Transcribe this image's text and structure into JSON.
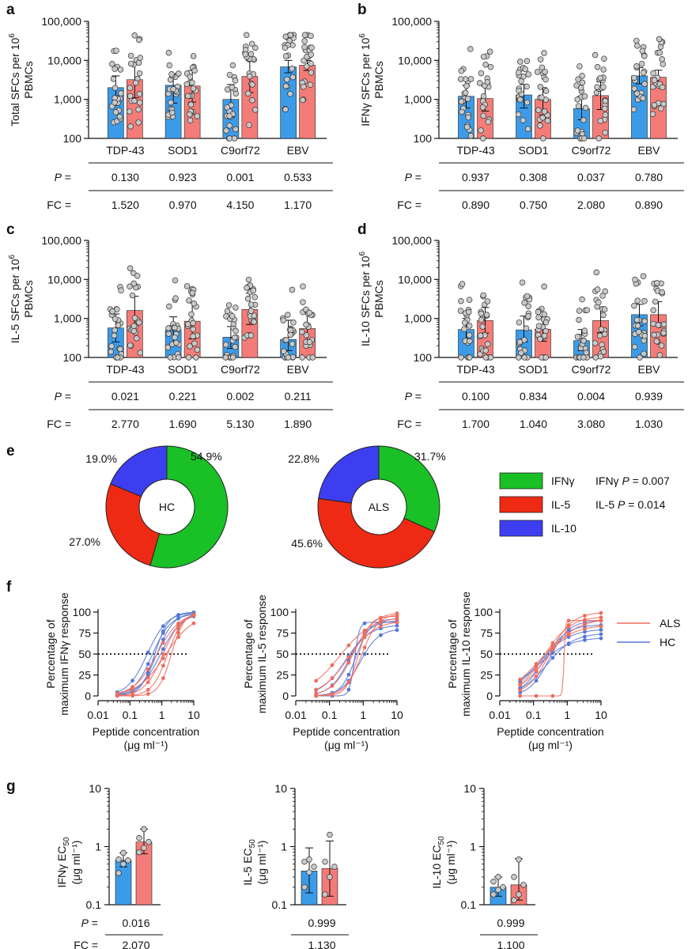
{
  "colors": {
    "hc": "#3b9be8",
    "als": "#f47c78",
    "hc_line": "#5578d8",
    "als_line": "#ee6d5f",
    "ifng": "#19c026",
    "il5": "#ef2a14",
    "il10": "#3d3ef0"
  },
  "panels": {
    "a": {
      "label": "a",
      "ylabel_line1": "Total SFCs per 10",
      "ylabel_sup": "6",
      "ylabel_line2": "PBMCs"
    },
    "b": {
      "label": "b",
      "ylabel_line1": "IFNγ SFCs per 10",
      "ylabel_sup": "6",
      "ylabel_line2": "PBMCs"
    },
    "c": {
      "label": "c",
      "ylabel_line1": "IL-5 SFCs per 10",
      "ylabel_sup": "6",
      "ylabel_line2": "PBMCs"
    },
    "d": {
      "label": "d",
      "ylabel_line1": "IL-10 SFCs per 10",
      "ylabel_sup": "6",
      "ylabel_line2": "PBMCs"
    },
    "e": {
      "label": "e"
    },
    "f": {
      "label": "f"
    },
    "g": {
      "label": "g"
    }
  },
  "stats_labels": {
    "p": "P",
    "eq": " =",
    "fc": "FC ="
  },
  "chart_data": [
    {
      "id": "a",
      "type": "bar",
      "yscale": "log",
      "ylim": [
        100,
        100000
      ],
      "yticks": [
        "100",
        "1,000",
        "10,000",
        "100,000"
      ],
      "categories": [
        "TDP-43",
        "SOD1",
        "C9orf72",
        "EBV"
      ],
      "series": [
        {
          "group": "HC",
          "values": [
            2000,
            2300,
            1000,
            6800
          ],
          "err_hi": [
            4000,
            4500,
            2400,
            10000
          ],
          "err_lo": [
            700,
            800,
            350,
            4800
          ]
        },
        {
          "group": "ALS",
          "values": [
            3200,
            2200,
            3900,
            7500
          ],
          "err_hi": [
            8500,
            5500,
            10000,
            10000
          ],
          "err_lo": [
            1100,
            850,
            1500,
            5500
          ]
        }
      ],
      "p": [
        "0.130",
        "0.923",
        "0.001",
        "0.533"
      ],
      "fc": [
        "1.520",
        "0.970",
        "4.150",
        "1.170"
      ]
    },
    {
      "id": "b",
      "type": "bar",
      "yscale": "log",
      "ylim": [
        100,
        100000
      ],
      "yticks": [
        "100",
        "1,000",
        "10,000",
        "100,000"
      ],
      "categories": [
        "TDP-43",
        "SOD1",
        "C9orf72",
        "EBV"
      ],
      "series": [
        {
          "group": "HC",
          "values": [
            1200,
            1300,
            580,
            4000
          ],
          "err_hi": [
            2300,
            2400,
            1200,
            6500
          ],
          "err_lo": [
            600,
            600,
            300,
            2500
          ]
        },
        {
          "group": "ALS",
          "values": [
            1050,
            1000,
            1250,
            3700
          ],
          "err_hi": [
            2200,
            2000,
            2800,
            5600
          ],
          "err_lo": [
            500,
            400,
            550,
            2200
          ]
        }
      ],
      "p": [
        "0.937",
        "0.308",
        "0.037",
        "0.780"
      ],
      "fc": [
        "0.890",
        "0.750",
        "2.080",
        "0.890"
      ]
    },
    {
      "id": "c",
      "type": "bar",
      "yscale": "log",
      "ylim": [
        100,
        100000
      ],
      "yticks": [
        "100",
        "1,000",
        "10,000",
        "100,000"
      ],
      "categories": [
        "TDP-43",
        "SOD1",
        "C9orf72",
        "EBV"
      ],
      "series": [
        {
          "group": "HC",
          "values": [
            570,
            500,
            330,
            290
          ],
          "err_hi": [
            1300,
            1100,
            620,
            900
          ],
          "err_lo": [
            250,
            230,
            170,
            150
          ]
        },
        {
          "group": "ALS",
          "values": [
            1600,
            850,
            1700,
            550
          ],
          "err_hi": [
            3700,
            2500,
            4500,
            1500
          ],
          "err_lo": [
            650,
            300,
            700,
            260
          ]
        }
      ],
      "p": [
        "0.021",
        "0.221",
        "0.002",
        "0.211"
      ],
      "fc": [
        "2.770",
        "1.690",
        "5.130",
        "1.890"
      ]
    },
    {
      "id": "d",
      "type": "bar",
      "yscale": "log",
      "ylim": [
        100,
        100000
      ],
      "yticks": [
        "100",
        "1,000",
        "10,000",
        "100,000"
      ],
      "categories": [
        "TDP-43",
        "SOD1",
        "C9orf72",
        "EBV"
      ],
      "series": [
        {
          "group": "HC",
          "values": [
            520,
            510,
            270,
            1250
          ],
          "err_hi": [
            1000,
            1150,
            520,
            2300
          ],
          "err_lo": [
            280,
            250,
            150,
            650
          ]
        },
        {
          "group": "ALS",
          "values": [
            880,
            530,
            880,
            1250
          ],
          "err_hi": [
            1900,
            1100,
            1900,
            2700
          ],
          "err_lo": [
            420,
            260,
            430,
            650
          ]
        }
      ],
      "p": [
        "0.100",
        "0.834",
        "0.004",
        "0.939"
      ],
      "fc": [
        "1.700",
        "1.040",
        "3.080",
        "1.030"
      ]
    },
    {
      "id": "e-hc",
      "type": "pie",
      "center_label": "HC",
      "slices": [
        {
          "name": "IFNγ",
          "value": 54.9,
          "label": "54.9%"
        },
        {
          "name": "IL-5",
          "value": 27.0,
          "label": "27.0%"
        },
        {
          "name": "IL-10",
          "value": 19.0,
          "label": "19.0%"
        }
      ]
    },
    {
      "id": "e-als",
      "type": "pie",
      "center_label": "ALS",
      "slices": [
        {
          "name": "IFNγ",
          "value": 31.7,
          "label": "31.7%"
        },
        {
          "name": "IL-5",
          "value": 45.6,
          "label": "45.6%"
        },
        {
          "name": "IL-10",
          "value": 22.8,
          "label": "22.8%"
        }
      ],
      "legend": [
        "IFNγ",
        "IL-5",
        "IL-10"
      ],
      "stats": [
        {
          "label": "IFNγ",
          "p": "0.007"
        },
        {
          "label": "IL-5",
          "p": "0.014"
        }
      ]
    },
    {
      "id": "f-ifng",
      "type": "line",
      "xscale": "log",
      "xlim": [
        0.01,
        10
      ],
      "ylim": [
        0,
        100
      ],
      "xticks": [
        "0.01",
        "0.1",
        "1",
        "10"
      ],
      "yticks": [
        "0",
        "25",
        "50",
        "75",
        "100"
      ],
      "ylabel": [
        "Percentage of",
        "maximum IFNγ response"
      ],
      "xlabel": [
        "Peptide concentration",
        "(μg ml⁻¹)"
      ],
      "threshold": 50,
      "curves": [
        {
          "group": "HC",
          "ec50": 0.35,
          "hill": 1.4,
          "top": 100
        },
        {
          "group": "HC",
          "ec50": 0.5,
          "hill": 1.5,
          "top": 98
        },
        {
          "group": "HC",
          "ec50": 0.7,
          "hill": 1.6,
          "top": 100
        },
        {
          "group": "HC",
          "ec50": 0.9,
          "hill": 1.3,
          "top": 99
        },
        {
          "group": "HC",
          "ec50": 0.6,
          "hill": 2.0,
          "top": 100
        },
        {
          "group": "ALS",
          "ec50": 0.7,
          "hill": 1.2,
          "top": 100
        },
        {
          "group": "ALS",
          "ec50": 1.1,
          "hill": 1.5,
          "top": 100
        },
        {
          "group": "ALS",
          "ec50": 1.5,
          "hill": 1.8,
          "top": 99
        },
        {
          "group": "ALS",
          "ec50": 2.0,
          "hill": 2.2,
          "top": 100
        },
        {
          "group": "ALS",
          "ec50": 1.3,
          "hill": 1.0,
          "top": 98
        }
      ]
    },
    {
      "id": "f-il5",
      "type": "line",
      "xscale": "log",
      "xlim": [
        0.01,
        10
      ],
      "ylim": [
        0,
        100
      ],
      "xticks": [
        "0.01",
        "0.1",
        "1",
        "10"
      ],
      "yticks": [
        "0",
        "25",
        "50",
        "75",
        "100"
      ],
      "ylabel": [
        "Percentage of",
        "maximum IL-5 response"
      ],
      "xlabel": [
        "Peptide concentration",
        "(μg ml⁻¹)"
      ],
      "threshold": 50,
      "curves": [
        {
          "group": "HC",
          "ec50": 0.4,
          "hill": 1.5,
          "top": 90
        },
        {
          "group": "HC",
          "ec50": 0.55,
          "hill": 6,
          "top": 88
        },
        {
          "group": "HC",
          "ec50": 0.3,
          "hill": 1.2,
          "top": 85
        },
        {
          "group": "HC",
          "ec50": 0.6,
          "hill": 2.0,
          "top": 92
        },
        {
          "group": "HC",
          "ec50": 0.8,
          "hill": 1.6,
          "top": 80
        },
        {
          "group": "ALS",
          "ec50": 0.2,
          "hill": 0.9,
          "top": 95
        },
        {
          "group": "ALS",
          "ec50": 0.5,
          "hill": 1.4,
          "top": 100
        },
        {
          "group": "ALS",
          "ec50": 0.7,
          "hill": 2.5,
          "top": 95
        },
        {
          "group": "ALS",
          "ec50": 0.9,
          "hill": 1.8,
          "top": 98
        },
        {
          "group": "ALS",
          "ec50": 0.35,
          "hill": 1.1,
          "top": 90
        }
      ]
    },
    {
      "id": "f-il10",
      "type": "line",
      "xscale": "log",
      "xlim": [
        0.01,
        10
      ],
      "ylim": [
        0,
        100
      ],
      "xticks": [
        "0.01",
        "0.1",
        "1",
        "10"
      ],
      "yticks": [
        "0",
        "25",
        "50",
        "75",
        "100"
      ],
      "ylabel": [
        "Percentage of",
        "maximum IL-10 response"
      ],
      "xlabel": [
        "Peptide concentration",
        "(μg ml⁻¹)"
      ],
      "threshold": 50,
      "legend": [
        "ALS",
        "HC"
      ],
      "curves": [
        {
          "group": "HC",
          "ec50": 0.15,
          "hill": 1.0,
          "top": 80
        },
        {
          "group": "HC",
          "ec50": 0.2,
          "hill": 1.3,
          "top": 85
        },
        {
          "group": "HC",
          "ec50": 0.25,
          "hill": 1.1,
          "top": 75
        },
        {
          "group": "HC",
          "ec50": 0.3,
          "hill": 1.5,
          "top": 90
        },
        {
          "group": "HC",
          "ec50": 0.12,
          "hill": 0.9,
          "top": 70
        },
        {
          "group": "ALS",
          "ec50": 0.2,
          "hill": 1.1,
          "top": 95
        },
        {
          "group": "ALS",
          "ec50": 0.8,
          "hill": 20,
          "top": 90
        },
        {
          "group": "ALS",
          "ec50": 0.3,
          "hill": 1.3,
          "top": 100
        },
        {
          "group": "ALS",
          "ec50": 0.15,
          "hill": 0.9,
          "top": 85
        },
        {
          "group": "ALS",
          "ec50": 0.25,
          "hill": 1.0,
          "top": 92
        }
      ]
    },
    {
      "id": "g-ifng",
      "type": "bar",
      "yscale": "log",
      "ylim": [
        0.1,
        10
      ],
      "yticks": [
        "0.1",
        "1",
        "10"
      ],
      "ylabel_main": "IFNγ EC",
      "ylabel_sub": "50",
      "ylabel_unit": "(μg ml⁻¹)",
      "series": [
        {
          "group": "HC",
          "value": 0.58,
          "err_hi": 0.78,
          "err_lo": 0.45,
          "points": [
            0.35,
            0.5,
            0.58,
            0.6,
            0.78
          ]
        },
        {
          "group": "ALS",
          "value": 1.2,
          "err_hi": 2.0,
          "err_lo": 0.75,
          "points": [
            0.8,
            0.95,
            1.2,
            1.4,
            2.0
          ]
        }
      ],
      "p": "0.016",
      "fc": "2.070"
    },
    {
      "id": "g-il5",
      "type": "bar",
      "yscale": "log",
      "ylim": [
        0.1,
        10
      ],
      "yticks": [
        "0.1",
        "1",
        "10"
      ],
      "ylabel_main": "IL-5 EC",
      "ylabel_sub": "50",
      "ylabel_unit": "(μg ml⁻¹)",
      "series": [
        {
          "group": "HC",
          "value": 0.38,
          "err_hi": 0.95,
          "err_lo": 0.16,
          "points": [
            0.2,
            0.36,
            0.45,
            0.55,
            0.6
          ]
        },
        {
          "group": "ALS",
          "value": 0.42,
          "err_hi": 1.25,
          "err_lo": 0.14,
          "points": [
            0.15,
            0.3,
            0.45,
            0.55,
            1.6
          ]
        }
      ],
      "p": "0.999",
      "fc": "1.130"
    },
    {
      "id": "g-il10",
      "type": "bar",
      "yscale": "log",
      "ylim": [
        0.1,
        10
      ],
      "yticks": [
        "0.1",
        "1",
        "10"
      ],
      "ylabel_main": "IL-10 EC",
      "ylabel_sub": "50",
      "ylabel_unit": "(μg ml⁻¹)",
      "series": [
        {
          "group": "HC",
          "value": 0.2,
          "err_hi": 0.3,
          "err_lo": 0.14,
          "points": [
            0.15,
            0.18,
            0.2,
            0.25,
            0.3
          ]
        },
        {
          "group": "ALS",
          "value": 0.22,
          "err_hi": 0.62,
          "err_lo": 0.12,
          "points": [
            0.12,
            0.15,
            0.22,
            0.3,
            0.6
          ]
        }
      ],
      "p": "0.999",
      "fc": "1.100"
    }
  ]
}
